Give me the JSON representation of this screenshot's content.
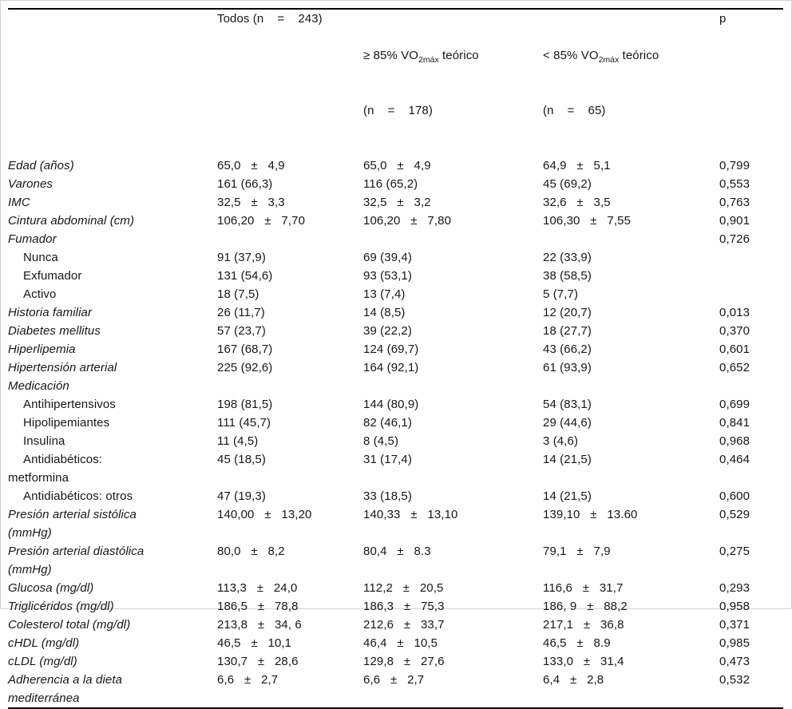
{
  "table": {
    "headers": {
      "todos": "Todos (n    =    243)",
      "ge85": {
        "pre": "≥ 85% VO",
        "sub": "2máx",
        "post": " teórico",
        "line2": "(n    =    178)"
      },
      "lt85": {
        "pre": "< 85% VO",
        "sub": "2máx",
        "post": " teórico",
        "line2": "(n    =    65)"
      },
      "p": "p"
    },
    "rows": [
      {
        "label": "Edad (años)",
        "style": "main",
        "todos": "65,0   ±   4,9",
        "ge85": "65,0   ±   4,9",
        "lt85": "64,9   ±   5,1",
        "p": "0,799"
      },
      {
        "label": "Varones",
        "style": "main",
        "todos": "161 (66,3)",
        "ge85": "116 (65,2)",
        "lt85": "45 (69,2)",
        "p": "0,553"
      },
      {
        "label": "IMC",
        "style": "main",
        "todos": "32,5   ±   3,3",
        "ge85": "32,5   ±   3,2",
        "lt85": "32,6   ±   3,5",
        "p": "0,763"
      },
      {
        "label": "Cintura abdominal (cm)",
        "style": "main",
        "todos": "106,20   ±   7,70",
        "ge85": "106,20   ±   7,80",
        "lt85": "106,30   ±   7,55",
        "p": "0,901"
      },
      {
        "label": "Fumador",
        "style": "main",
        "todos": "",
        "ge85": "",
        "lt85": "",
        "p": "0,726"
      },
      {
        "label": "Nunca",
        "style": "sub",
        "todos": "91 (37,9)",
        "ge85": "69 (39,4)",
        "lt85": "22 (33,9)",
        "p": ""
      },
      {
        "label": "Exfumador",
        "style": "sub",
        "todos": "131 (54,6)",
        "ge85": "93 (53,1)",
        "lt85": "38 (58,5)",
        "p": ""
      },
      {
        "label": "Activo",
        "style": "sub",
        "todos": "18 (7,5)",
        "ge85": "13 (7,4)",
        "lt85": "5 (7,7)",
        "p": ""
      },
      {
        "label": "Historia familiar",
        "style": "main",
        "todos": "26 (11,7)",
        "ge85": "14 (8,5)",
        "lt85": "12 (20,7)",
        "p": "0,013"
      },
      {
        "label": "Diabetes mellitus",
        "style": "main",
        "todos": "57 (23,7)",
        "ge85": "39 (22,2)",
        "lt85": "18 (27,7)",
        "p": "0,370"
      },
      {
        "label": "Hiperlipemia",
        "style": "main",
        "todos": "167 (68,7)",
        "ge85": "124 (69,7)",
        "lt85": "43 (66,2)",
        "p": "0,601"
      },
      {
        "label": "Hipertensión arterial",
        "style": "main",
        "todos": "225 (92,6)",
        "ge85": "164 (92,1)",
        "lt85": "61 (93,9)",
        "p": "0,652"
      },
      {
        "label": "Medicación",
        "style": "main",
        "todos": "",
        "ge85": "",
        "lt85": "",
        "p": ""
      },
      {
        "label": "Antihipertensivos",
        "style": "sub",
        "todos": "198 (81,5)",
        "ge85": "144 (80,9)",
        "lt85": "54 (83,1)",
        "p": "0,699"
      },
      {
        "label": "Hipolipemiantes",
        "style": "sub",
        "todos": "111 (45,7)",
        "ge85": "82 (46,1)",
        "lt85": "29 (44,6)",
        "p": "0,841"
      },
      {
        "label": "Insulina",
        "style": "sub",
        "todos": "11 (4,5)",
        "ge85": "8 (4,5)",
        "lt85": "3 (4,6)",
        "p": "0,968"
      },
      {
        "label": "Antidiabéticos:\nmetformina",
        "style": "sub",
        "todos": "45 (18,5)",
        "ge85": "31 (17,4)",
        "lt85": "14 (21,5)",
        "p": "0,464"
      },
      {
        "label": "Antidiabéticos: otros",
        "style": "sub",
        "todos": "47 (19,3)",
        "ge85": "33 (18,5)",
        "lt85": "14 (21,5)",
        "p": "0,600"
      },
      {
        "label": "Presión arterial sistólica\n(mmHg)",
        "style": "main",
        "todos": "140,00   ±   13,20",
        "ge85": "140,33   ±   13,10",
        "lt85": "139,10   ±   13.60",
        "p": "0,529"
      },
      {
        "label": "Presión arterial diastólica\n(mmHg)",
        "style": "main",
        "todos": "80,0   ±   8,2",
        "ge85": "80,4   ±   8.3",
        "lt85": "79,1   ±   7,9",
        "p": "0,275"
      },
      {
        "label": "Glucosa (mg/dl)",
        "style": "main",
        "todos": "113,3   ±   24,0",
        "ge85": "112,2   ±   20,5",
        "lt85": "116,6   ±   31,7",
        "p": "0,293"
      },
      {
        "label": "Triglicéridos (mg/dl)",
        "style": "main",
        "todos": "186,5   ±   78,8",
        "ge85": "186,3   ±   75,3",
        "lt85": "186, 9   ±   88,2",
        "p": "0,958"
      },
      {
        "label": "Colesterol total (mg/dl)",
        "style": "main",
        "todos": "213,8   ±   34, 6",
        "ge85": "212,6   ±   33,7",
        "lt85": "217,1   ±   36,8",
        "p": "0,371"
      },
      {
        "label": "cHDL (mg/dl)",
        "style": "main",
        "todos": "46,5   ±   10,1",
        "ge85": "46,4   ±   10,5",
        "lt85": "46,5   ±   8.9",
        "p": "0,985"
      },
      {
        "label": "cLDL (mg/dl)",
        "style": "main",
        "todos": "130,7   ±   28,6",
        "ge85": "129,8   ±   27,6",
        "lt85": "133,0   ±   31,4",
        "p": "0,473"
      },
      {
        "label": "Adherencia a la dieta\nmediterránea",
        "style": "main",
        "todos": "6,6   ±   2,7",
        "ge85": "6,6   ±   2,7",
        "lt85": "6,4   ±   2,8",
        "p": "0,532"
      }
    ]
  }
}
